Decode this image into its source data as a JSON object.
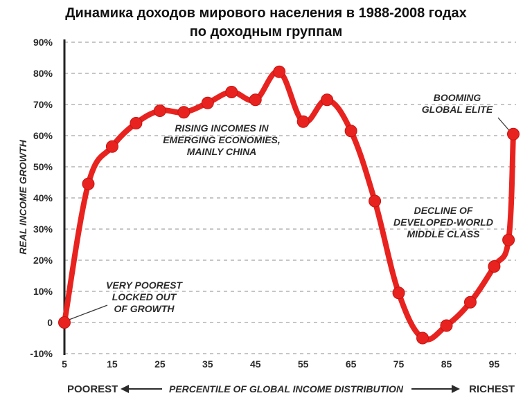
{
  "page": {
    "title_line1": "Динамика доходов мирового населения в 1988-2008 годах",
    "title_line2": "по доходным группам"
  },
  "chart_data": {
    "type": "line",
    "xlabel": "PERCENTILE OF GLOBAL INCOME DISTRIBUTION",
    "ylabel": "REAL INCOME GROWTH",
    "x_left_label": "POOREST",
    "x_right_label": "RICHEST",
    "x_ticks": [
      5,
      15,
      25,
      35,
      45,
      55,
      65,
      75,
      85,
      95
    ],
    "x_tick_labels": [
      "5",
      "15",
      "25",
      "35",
      "45",
      "55",
      "65",
      "75",
      "85",
      "95"
    ],
    "y_ticks": [
      -10,
      0,
      10,
      20,
      30,
      40,
      50,
      60,
      70,
      80,
      90
    ],
    "y_tick_labels": [
      "-10%",
      "0",
      "10%",
      "20%",
      "30%",
      "40%",
      "50%",
      "60%",
      "70%",
      "80%",
      "90%"
    ],
    "xlim": [
      5,
      99
    ],
    "ylim": [
      -10,
      90
    ],
    "grid": true,
    "line_color": "#e8231f",
    "grid_color": "#b3b3b3",
    "x": [
      5,
      10,
      15,
      20,
      25,
      30,
      35,
      40,
      45,
      50,
      55,
      60,
      65,
      70,
      75,
      80,
      85,
      90,
      95,
      98,
      99
    ],
    "y": [
      0,
      44.5,
      56.5,
      64,
      68,
      67.5,
      70.5,
      74,
      71.5,
      80.5,
      64.5,
      71.5,
      61.5,
      39,
      9.5,
      -5,
      -1,
      6.5,
      18,
      26.5,
      60.5
    ],
    "annotations": [
      {
        "lines": [
          "VERY POOREST",
          "LOCKED OUT",
          "OF GROWTH"
        ]
      },
      {
        "lines": [
          "RISING INCOMES IN",
          "EMERGING ECONOMIES,",
          "MAINLY CHINA"
        ]
      },
      {
        "lines": [
          "DECLINE OF",
          "DEVELOPED-WORLD",
          "MIDDLE CLASS"
        ]
      },
      {
        "lines": [
          "BOOMING",
          "GLOBAL ELITE"
        ]
      }
    ]
  }
}
